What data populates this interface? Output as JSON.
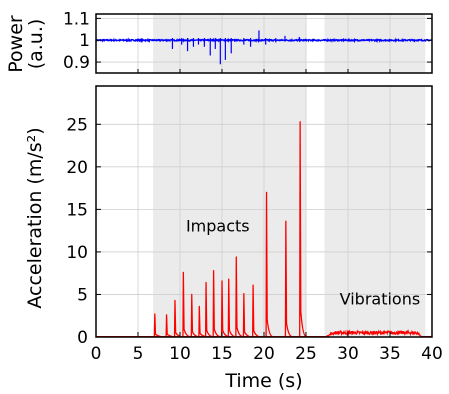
{
  "chart_data": [
    {
      "type": "line",
      "panel": "top",
      "ylabel_line1": "Power",
      "ylabel_line2": "(a.u.)",
      "ylim": [
        0.85,
        1.12
      ],
      "yticks": [
        0.9,
        1,
        1.1
      ],
      "ytick_labels": [
        "0.9",
        "1",
        "1.1"
      ],
      "xlim": [
        0,
        40
      ],
      "series": [
        {
          "color": "#0000ff",
          "baseline": 1.0,
          "noise": 0.003,
          "dips": [
            {
              "x": 9.1,
              "y": 0.96
            },
            {
              "x": 10.2,
              "y": 0.98
            },
            {
              "x": 10.9,
              "y": 0.95
            },
            {
              "x": 11.6,
              "y": 0.97
            },
            {
              "x": 12.2,
              "y": 0.98
            },
            {
              "x": 12.9,
              "y": 0.97
            },
            {
              "x": 13.6,
              "y": 0.93
            },
            {
              "x": 14.2,
              "y": 0.96
            },
            {
              "x": 14.8,
              "y": 0.89
            },
            {
              "x": 15.4,
              "y": 0.91
            },
            {
              "x": 16.1,
              "y": 0.94
            },
            {
              "x": 17.6,
              "y": 0.98
            },
            {
              "x": 18.4,
              "y": 0.97
            },
            {
              "x": 20.2,
              "y": 0.98
            },
            {
              "x": 21.4,
              "y": 0.99
            }
          ],
          "peaks": [
            {
              "x": 19.4,
              "y": 1.045
            },
            {
              "x": 22.5,
              "y": 1.02
            },
            {
              "x": 24.2,
              "y": 1.015
            }
          ]
        }
      ]
    },
    {
      "type": "line",
      "panel": "bottom",
      "xlabel": "Time (s)",
      "ylabel": "Acceleration (m/s²)",
      "xlim": [
        0,
        40
      ],
      "ylim": [
        0,
        29.5
      ],
      "xticks": [
        0,
        5,
        10,
        15,
        20,
        25,
        30,
        35,
        40
      ],
      "xtick_labels": [
        "0",
        "5",
        "10",
        "15",
        "20",
        "25",
        "30",
        "35",
        "40"
      ],
      "yticks": [
        0,
        5,
        10,
        15,
        20,
        25
      ],
      "ytick_labels": [
        "0",
        "5",
        "10",
        "15",
        "20",
        "25"
      ],
      "grid": true,
      "shaded_regions": [
        [
          6.8,
          25.0
        ],
        [
          27.2,
          39.2
        ]
      ],
      "annotations": [
        {
          "text": "Impacts",
          "x": 14.5,
          "y": 12.4
        },
        {
          "text": "Vibrations",
          "x": 33.8,
          "y": 3.8
        }
      ],
      "series": [
        {
          "color": "#ff0000",
          "impacts": [
            {
              "x": 7.0,
              "y": 2.7
            },
            {
              "x": 8.4,
              "y": 2.6
            },
            {
              "x": 9.4,
              "y": 4.3
            },
            {
              "x": 10.4,
              "y": 7.6
            },
            {
              "x": 11.4,
              "y": 5.0
            },
            {
              "x": 12.3,
              "y": 3.6
            },
            {
              "x": 13.1,
              "y": 6.4
            },
            {
              "x": 14.0,
              "y": 7.8
            },
            {
              "x": 15.0,
              "y": 6.6
            },
            {
              "x": 15.8,
              "y": 6.8
            },
            {
              "x": 16.7,
              "y": 9.4
            },
            {
              "x": 17.6,
              "y": 5.1
            },
            {
              "x": 18.7,
              "y": 6.1
            },
            {
              "x": 20.3,
              "y": 17.0
            },
            {
              "x": 22.6,
              "y": 13.6
            },
            {
              "x": 24.3,
              "y": 25.3
            }
          ],
          "vibration_band": {
            "x_start": 27.3,
            "x_end": 38.8,
            "level": 0.5
          }
        }
      ]
    }
  ]
}
